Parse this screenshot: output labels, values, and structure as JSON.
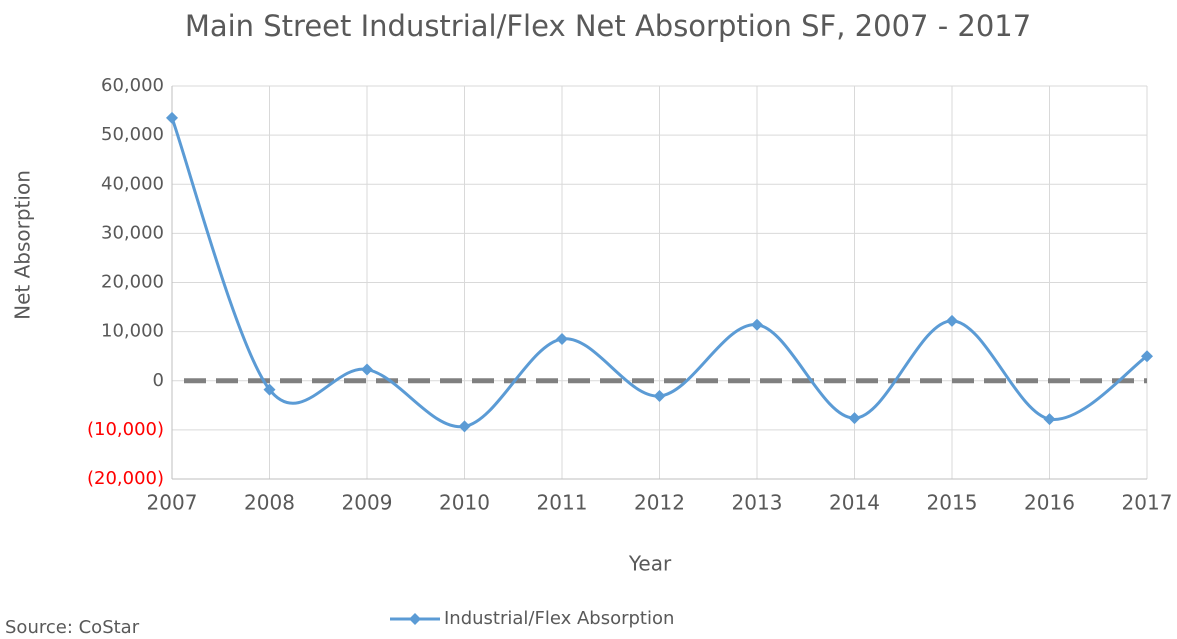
{
  "chart_data": {
    "type": "line",
    "title": "Main Street Industrial/Flex Net Absorption SF, 2007 - 2017",
    "x_label": "Year",
    "y_label": "Net Absorption",
    "source": "Source: CoStar",
    "x": [
      2007,
      2008,
      2009,
      2010,
      2011,
      2012,
      2013,
      2014,
      2015,
      2016,
      2017
    ],
    "series": [
      {
        "name": "Industrial/Flex Absorption",
        "color": "#5b9bd5",
        "values": [
          53500,
          -1800,
          2300,
          -9300,
          8500,
          -3100,
          11400,
          -7600,
          12200,
          -7800,
          5000
        ]
      }
    ],
    "smooth": true,
    "xlim": [
      2007,
      2017
    ],
    "xticks": [
      2007,
      2008,
      2009,
      2010,
      2011,
      2012,
      2013,
      2014,
      2015,
      2016,
      2017
    ],
    "ylim": [
      -20000,
      60000
    ],
    "yticks": [
      {
        "value": -20000,
        "label": "(20,000)"
      },
      {
        "value": -10000,
        "label": "(10,000)"
      },
      0,
      {
        "value": 10000,
        "label": "10,000"
      },
      {
        "value": 20000,
        "label": "20,000"
      },
      {
        "value": 30000,
        "label": "30,000"
      },
      {
        "value": 40000,
        "label": "40,000"
      },
      {
        "value": 50000,
        "label": "50,000"
      },
      {
        "value": 60000,
        "label": "60,000"
      }
    ],
    "negative_label_color": "#ff0000",
    "grid": true,
    "reference_line": {
      "value": 0,
      "color": "#808080"
    },
    "legend": "bottom"
  }
}
